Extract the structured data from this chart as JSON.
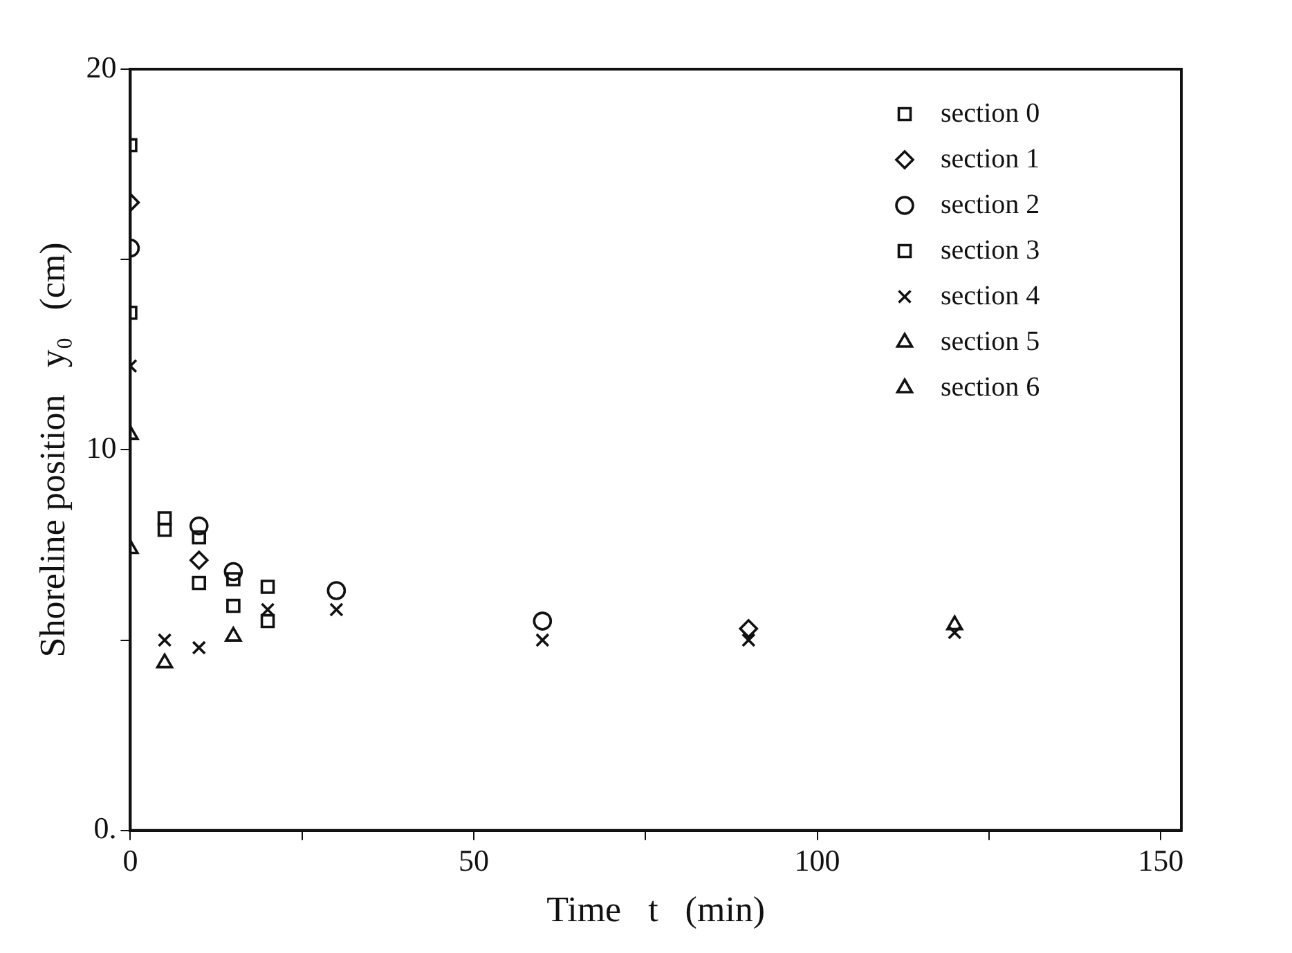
{
  "chart_data": {
    "type": "scatter",
    "xlabel": "Time   t   (min)",
    "ylabel": "Shoreline position   y₀   (cm)",
    "xlim": [
      0,
      153
    ],
    "xticks": [
      0,
      {
        "value": 25,
        "label": null
      },
      50,
      {
        "value": 75,
        "label": null
      },
      100,
      {
        "value": 125,
        "label": null
      },
      150
    ],
    "ylim": [
      0,
      20
    ],
    "yticks": [
      {
        "value": 0,
        "label": "0."
      },
      {
        "value": 5,
        "label": null
      },
      10,
      {
        "value": 15,
        "label": null
      },
      20
    ],
    "grid": false,
    "legend": "top right",
    "series": [
      {
        "name": "section 0",
        "color": "#111111",
        "marker": "square",
        "x": [
          0,
          5,
          10,
          15,
          20
        ],
        "values": [
          18.0,
          8.2,
          7.7,
          6.6,
          6.4
        ]
      },
      {
        "name": "section 1",
        "color": "#111111",
        "marker": "diamond",
        "x": [
          0,
          10,
          90
        ],
        "values": [
          16.5,
          7.1,
          5.3
        ]
      },
      {
        "name": "section 2",
        "color": "#111111",
        "marker": "circle",
        "x": [
          0,
          10,
          15,
          30,
          60
        ],
        "values": [
          15.3,
          8.0,
          6.8,
          6.3,
          5.5
        ]
      },
      {
        "name": "section 3",
        "color": "#111111",
        "marker": "square",
        "x": [
          0,
          5,
          10,
          15,
          20
        ],
        "values": [
          13.6,
          7.9,
          6.5,
          5.9,
          5.5
        ]
      },
      {
        "name": "section 4",
        "color": "#111111",
        "marker": "cross",
        "x": [
          0,
          5,
          10,
          20,
          30,
          60,
          90,
          120
        ],
        "values": [
          12.2,
          5.0,
          4.8,
          5.8,
          5.8,
          5.0,
          5.0,
          5.2
        ]
      },
      {
        "name": "section 5",
        "color": "#111111",
        "marker": "triangle",
        "x": [
          0
        ],
        "values": [
          10.4
        ]
      },
      {
        "name": "section 6",
        "color": "#111111",
        "marker": "triangle",
        "x": [
          0,
          5,
          15,
          120
        ],
        "values": [
          7.4,
          4.4,
          5.1,
          5.4
        ]
      }
    ]
  }
}
